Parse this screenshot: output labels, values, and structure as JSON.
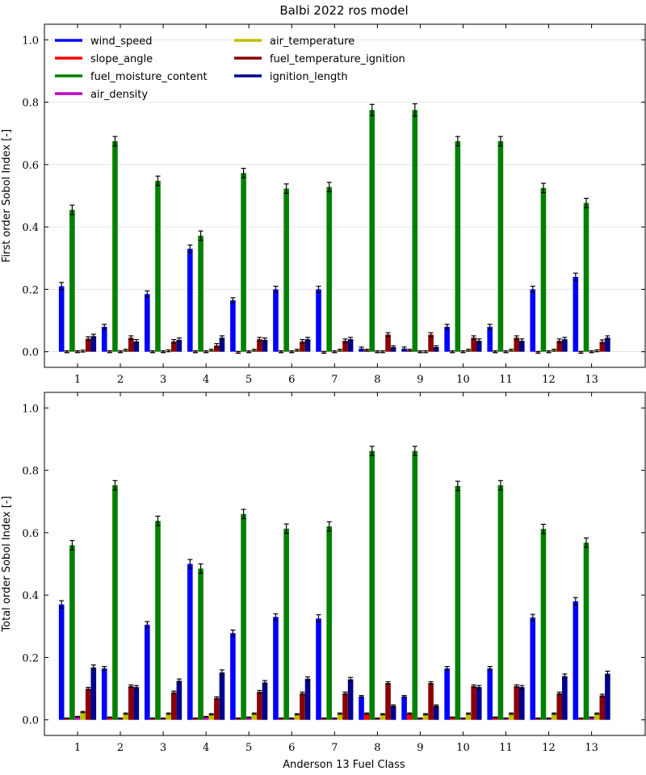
{
  "title": "Balbi 2022 ros model",
  "xlabel": "Anderson 13 Fuel Class",
  "colors": {
    "wind_speed": "#0000ff",
    "slope_angle": "#ff0000",
    "fuel_moisture_content": "#008000",
    "air_density": "#bf00bf",
    "air_temperature": "#bfbf00",
    "fuel_temperature_ignition": "#8b0000",
    "ignition_length": "#00008b"
  },
  "legend": {
    "placement": "top-left",
    "columns": 2
  },
  "chart_data": [
    {
      "type": "bar",
      "ylabel": "First order Sobol Index [-]",
      "ylim": [
        -0.05,
        1.05
      ],
      "yticks": [
        "0.0",
        "0.2",
        "0.4",
        "0.6",
        "0.8",
        "1.0"
      ],
      "grid": "horizontal",
      "categories": [
        "1",
        "2",
        "3",
        "4",
        "5",
        "6",
        "7",
        "8",
        "9",
        "10",
        "11",
        "12",
        "13"
      ],
      "series": [
        {
          "name": "wind_speed",
          "values": [
            0.21,
            0.08,
            0.185,
            0.33,
            0.165,
            0.2,
            0.2,
            0.01,
            0.01,
            0.08,
            0.08,
            0.2,
            0.24
          ],
          "errors": [
            0.012,
            0.008,
            0.01,
            0.012,
            0.008,
            0.01,
            0.01,
            0.005,
            0.005,
            0.008,
            0.008,
            0.01,
            0.012
          ]
        },
        {
          "name": "slope_angle",
          "values": [
            0.0,
            0.0,
            0.0,
            0.0,
            -0.002,
            0.0,
            -0.002,
            0.005,
            0.005,
            0.0,
            0.0,
            -0.002,
            -0.002
          ],
          "errors": [
            0.003,
            0.003,
            0.003,
            0.003,
            0.003,
            0.003,
            0.003,
            0.003,
            0.003,
            0.003,
            0.003,
            0.003,
            0.003
          ]
        },
        {
          "name": "fuel_moisture_content",
          "values": [
            0.455,
            0.675,
            0.548,
            0.372,
            0.573,
            0.523,
            0.528,
            0.775,
            0.775,
            0.675,
            0.675,
            0.525,
            0.477
          ],
          "errors": [
            0.015,
            0.015,
            0.015,
            0.015,
            0.015,
            0.015,
            0.015,
            0.018,
            0.02,
            0.015,
            0.015,
            0.015,
            0.015
          ]
        },
        {
          "name": "air_density",
          "values": [
            0.0,
            0.0,
            0.0,
            0.0,
            0.0,
            0.0,
            0.0,
            0.0,
            0.0,
            0.0,
            0.0,
            0.0,
            0.0
          ],
          "errors": [
            0.003,
            0.003,
            0.003,
            0.003,
            0.003,
            0.003,
            0.003,
            0.003,
            0.003,
            0.003,
            0.003,
            0.003,
            0.003
          ]
        },
        {
          "name": "air_temperature",
          "values": [
            0.002,
            0.005,
            0.003,
            0.005,
            0.005,
            0.005,
            0.005,
            0.0,
            0.0,
            0.005,
            0.005,
            0.005,
            0.003
          ],
          "errors": [
            0.003,
            0.003,
            0.003,
            0.003,
            0.003,
            0.003,
            0.003,
            0.003,
            0.003,
            0.003,
            0.003,
            0.003,
            0.003
          ]
        },
        {
          "name": "fuel_temperature_ignition",
          "values": [
            0.042,
            0.045,
            0.033,
            0.02,
            0.04,
            0.033,
            0.035,
            0.055,
            0.055,
            0.045,
            0.045,
            0.035,
            0.032
          ],
          "errors": [
            0.006,
            0.006,
            0.006,
            0.006,
            0.006,
            0.006,
            0.006,
            0.006,
            0.006,
            0.006,
            0.006,
            0.006,
            0.006
          ]
        },
        {
          "name": "ignition_length",
          "values": [
            0.05,
            0.033,
            0.038,
            0.045,
            0.038,
            0.04,
            0.04,
            0.015,
            0.015,
            0.035,
            0.035,
            0.04,
            0.045
          ],
          "errors": [
            0.006,
            0.006,
            0.006,
            0.006,
            0.006,
            0.006,
            0.006,
            0.004,
            0.004,
            0.006,
            0.006,
            0.006,
            0.006
          ]
        }
      ]
    },
    {
      "type": "bar",
      "ylabel": "Total order Sobol Index [-]",
      "ylim": [
        -0.05,
        1.05
      ],
      "yticks": [
        "0.0",
        "0.2",
        "0.4",
        "0.6",
        "0.8",
        "1.0"
      ],
      "grid": "none",
      "categories": [
        "1",
        "2",
        "3",
        "4",
        "5",
        "6",
        "7",
        "8",
        "9",
        "10",
        "11",
        "12",
        "13"
      ],
      "series": [
        {
          "name": "wind_speed",
          "values": [
            0.37,
            0.165,
            0.305,
            0.5,
            0.278,
            0.33,
            0.325,
            0.075,
            0.075,
            0.165,
            0.165,
            0.328,
            0.38
          ],
          "errors": [
            0.012,
            0.006,
            0.01,
            0.014,
            0.01,
            0.01,
            0.012,
            0.003,
            0.003,
            0.006,
            0.006,
            0.01,
            0.012
          ]
        },
        {
          "name": "slope_angle",
          "values": [
            0.005,
            0.008,
            0.005,
            0.005,
            0.005,
            0.005,
            0.005,
            0.02,
            0.02,
            0.008,
            0.008,
            0.005,
            0.005
          ],
          "errors": [
            0.001,
            0.001,
            0.001,
            0.001,
            0.001,
            0.001,
            0.001,
            0.002,
            0.002,
            0.001,
            0.001,
            0.001,
            0.001
          ]
        },
        {
          "name": "fuel_moisture_content",
          "values": [
            0.56,
            0.752,
            0.638,
            0.485,
            0.66,
            0.613,
            0.62,
            0.862,
            0.862,
            0.75,
            0.752,
            0.612,
            0.568
          ],
          "errors": [
            0.015,
            0.015,
            0.015,
            0.015,
            0.015,
            0.015,
            0.015,
            0.015,
            0.015,
            0.015,
            0.015,
            0.015,
            0.015
          ]
        },
        {
          "name": "air_density",
          "values": [
            0.01,
            0.005,
            0.005,
            0.01,
            0.008,
            0.005,
            0.005,
            0.005,
            0.005,
            0.005,
            0.005,
            0.005,
            0.008
          ],
          "errors": [
            0.001,
            0.001,
            0.001,
            0.001,
            0.001,
            0.001,
            0.001,
            0.001,
            0.001,
            0.001,
            0.001,
            0.001,
            0.001
          ]
        },
        {
          "name": "air_temperature",
          "values": [
            0.025,
            0.02,
            0.02,
            0.018,
            0.02,
            0.018,
            0.02,
            0.018,
            0.018,
            0.02,
            0.02,
            0.02,
            0.02
          ],
          "errors": [
            0.002,
            0.002,
            0.002,
            0.002,
            0.002,
            0.002,
            0.002,
            0.002,
            0.002,
            0.002,
            0.002,
            0.002,
            0.002
          ]
        },
        {
          "name": "fuel_temperature_ignition",
          "values": [
            0.1,
            0.108,
            0.088,
            0.07,
            0.09,
            0.085,
            0.085,
            0.118,
            0.118,
            0.108,
            0.108,
            0.085,
            0.078
          ],
          "errors": [
            0.004,
            0.004,
            0.004,
            0.004,
            0.004,
            0.004,
            0.004,
            0.004,
            0.004,
            0.004,
            0.004,
            0.004,
            0.004
          ]
        },
        {
          "name": "ignition_length",
          "values": [
            0.168,
            0.105,
            0.125,
            0.152,
            0.12,
            0.132,
            0.13,
            0.045,
            0.045,
            0.105,
            0.105,
            0.14,
            0.148
          ],
          "errors": [
            0.008,
            0.005,
            0.006,
            0.008,
            0.006,
            0.006,
            0.006,
            0.003,
            0.003,
            0.005,
            0.005,
            0.007,
            0.008
          ]
        }
      ]
    }
  ]
}
